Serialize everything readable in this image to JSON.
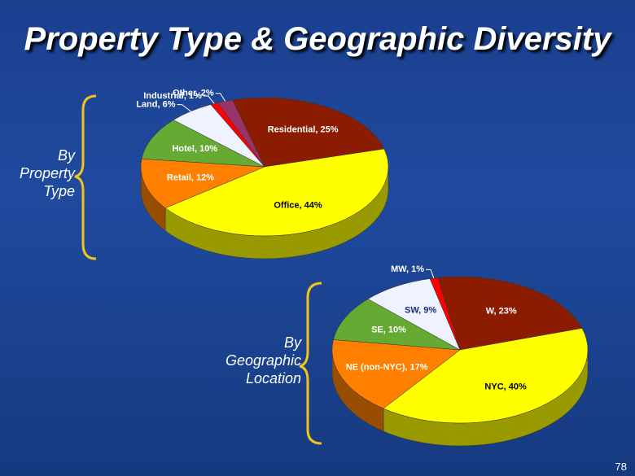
{
  "title": "Property Type & Geographic Diversity",
  "page_number": "78",
  "chart_data": [
    {
      "type": "pie",
      "title": "By Property Type",
      "values": [
        25,
        44,
        12,
        10,
        6,
        1,
        2
      ],
      "value_labels": [
        "Residential, 25%",
        "Office, 44%",
        "Retail, 12%",
        "Hotel, 10%",
        "Land, 6%",
        "Industrial, 1%",
        "Other, 2%"
      ],
      "colors": [
        "#8b1c00",
        "#ffff00",
        "#ff8000",
        "#66aa33",
        "#eef3ff",
        "#ff0000",
        "#993366"
      ]
    },
    {
      "type": "pie",
      "title": "By Geographic Location",
      "values": [
        23,
        40,
        17,
        10,
        9,
        1
      ],
      "value_labels": [
        "W, 23%",
        "NYC, 40%",
        "NE (non-NYC), 17%",
        "SE, 10%",
        "SW, 9%",
        "MW, 1%"
      ],
      "colors": [
        "#8b1c00",
        "#ffff00",
        "#ff8000",
        "#66aa33",
        "#eef3ff",
        "#ff0000"
      ]
    }
  ]
}
